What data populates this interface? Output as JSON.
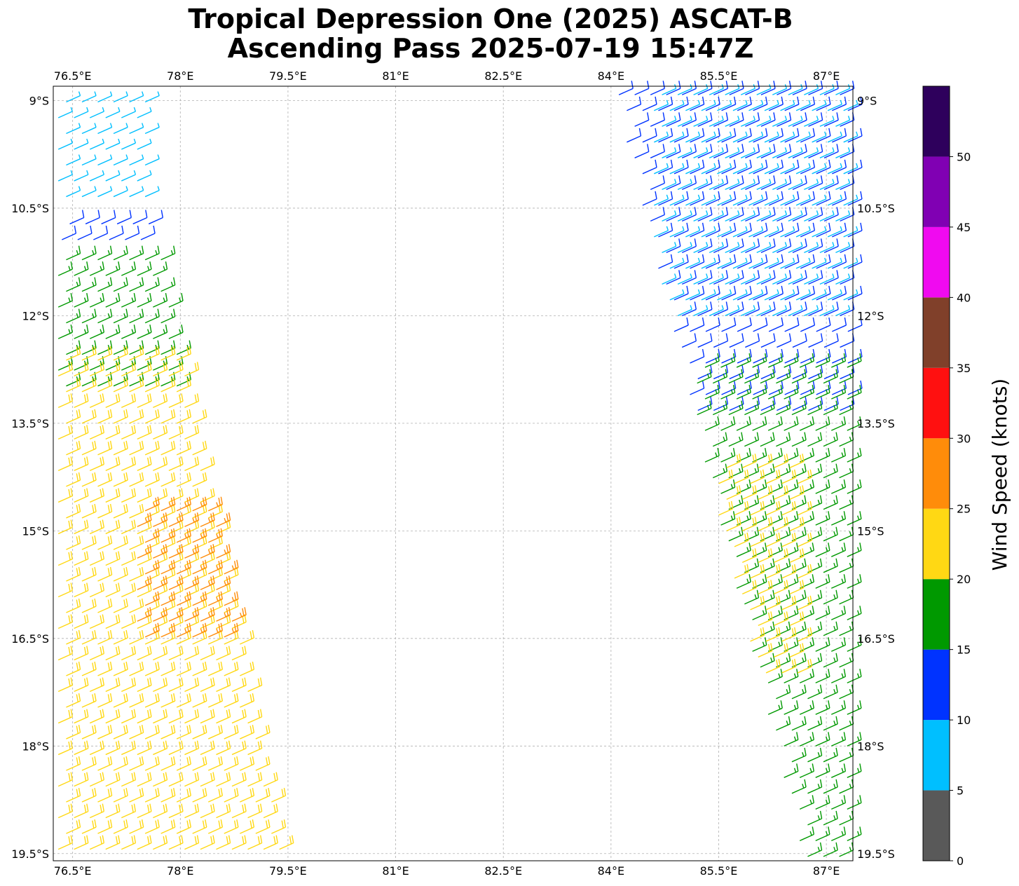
{
  "title_line1": "Tropical Depression One (2025) ASCAT-B",
  "title_line2": "Ascending Pass 2025-07-19 15:47Z",
  "map": {
    "lon_range": [
      76.23,
      87.37
    ],
    "lat_range": [
      -19.6,
      -8.8
    ],
    "lon_ticks": [
      {
        "value": 76.5,
        "label": "76.5°E"
      },
      {
        "value": 78,
        "label": "78°E"
      },
      {
        "value": 79.5,
        "label": "79.5°E"
      },
      {
        "value": 81,
        "label": "81°E"
      },
      {
        "value": 82.5,
        "label": "82.5°E"
      },
      {
        "value": 84,
        "label": "84°E"
      },
      {
        "value": 85.5,
        "label": "85.5°E"
      },
      {
        "value": 87,
        "label": "87°E"
      }
    ],
    "lat_ticks": [
      {
        "value": -9,
        "label": "9°S"
      },
      {
        "value": -10.5,
        "label": "10.5°S"
      },
      {
        "value": -12,
        "label": "12°S"
      },
      {
        "value": -13.5,
        "label": "13.5°S"
      },
      {
        "value": -15,
        "label": "15°S"
      },
      {
        "value": -16.5,
        "label": "16.5°S"
      },
      {
        "value": -18,
        "label": "18°S"
      },
      {
        "value": -19.5,
        "label": "19.5°S"
      }
    ],
    "gridlines": true
  },
  "colorbar": {
    "label": "Wind Speed (knots)",
    "ticks": [
      {
        "value": 0,
        "label": "0"
      },
      {
        "value": 5,
        "label": "5"
      },
      {
        "value": 10,
        "label": "10"
      },
      {
        "value": 15,
        "label": "15"
      },
      {
        "value": 20,
        "label": "20"
      },
      {
        "value": 25,
        "label": "25"
      },
      {
        "value": 30,
        "label": "30"
      },
      {
        "value": 35,
        "label": "35"
      },
      {
        "value": 40,
        "label": "40"
      },
      {
        "value": 45,
        "label": "45"
      },
      {
        "value": 50,
        "label": "50"
      }
    ],
    "bins": [
      {
        "min": 0,
        "max": 5,
        "color": "#595959"
      },
      {
        "min": 5,
        "max": 10,
        "color": "#00bfff"
      },
      {
        "min": 10,
        "max": 15,
        "color": "#0033ff"
      },
      {
        "min": 15,
        "max": 20,
        "color": "#009900"
      },
      {
        "min": 20,
        "max": 25,
        "color": "#ffd814"
      },
      {
        "min": 25,
        "max": 30,
        "color": "#ff8c0a"
      },
      {
        "min": 30,
        "max": 35,
        "color": "#ff1010"
      },
      {
        "min": 35,
        "max": 40,
        "color": "#80402a"
      },
      {
        "min": 40,
        "max": 45,
        "color": "#f00af0"
      },
      {
        "min": 45,
        "max": 50,
        "color": "#8000b3"
      },
      {
        "min": 50,
        "max": 55,
        "color": "#2e005c"
      }
    ]
  },
  "wind_regions": [
    {
      "name": "west-swath-light",
      "lon": [
        76.3,
        77.6
      ],
      "lat": [
        -10.5,
        -8.9
      ],
      "speed_knots": 8,
      "color": "#00bfff"
    },
    {
      "name": "west-swath-band",
      "lon": [
        76.35,
        77.6
      ],
      "lat": [
        -11.1,
        -10.6
      ],
      "speed_knots": 12,
      "color": "#0033ff"
    },
    {
      "name": "west-swath-moderate",
      "lon": [
        76.3,
        78.0
      ],
      "lat": [
        -13.0,
        -11.1
      ],
      "speed_knots": 18,
      "color": "#009900"
    },
    {
      "name": "west-swath-fresh",
      "lon": [
        76.3,
        79.5
      ],
      "lat": [
        -19.6,
        -12.5
      ],
      "speed_knots": 22,
      "color": "#ffd814"
    },
    {
      "name": "west-swath-strong",
      "lon": [
        77.4,
        79.0
      ],
      "lat": [
        -16.5,
        -14.6
      ],
      "speed_knots": 27,
      "color": "#ff8c0a"
    },
    {
      "name": "east-swath-light",
      "lon": [
        84.6,
        87.3
      ],
      "lat": [
        -12.2,
        -8.8
      ],
      "speed_knots": 8,
      "color": "#00bfff"
    },
    {
      "name": "east-swath-band",
      "lon": [
        84.0,
        87.37
      ],
      "lat": [
        -13.5,
        -8.8
      ],
      "speed_knots": 12,
      "color": "#0033ff"
    },
    {
      "name": "east-swath-moderate",
      "lon": [
        85.2,
        87.37
      ],
      "lat": [
        -19.6,
        -12.6
      ],
      "speed_knots": 17,
      "color": "#009900"
    },
    {
      "name": "east-swath-fresh",
      "lon": [
        85.5,
        86.6
      ],
      "lat": [
        -17.1,
        -14.0
      ],
      "speed_knots": 22,
      "color": "#ffd814"
    }
  ]
}
